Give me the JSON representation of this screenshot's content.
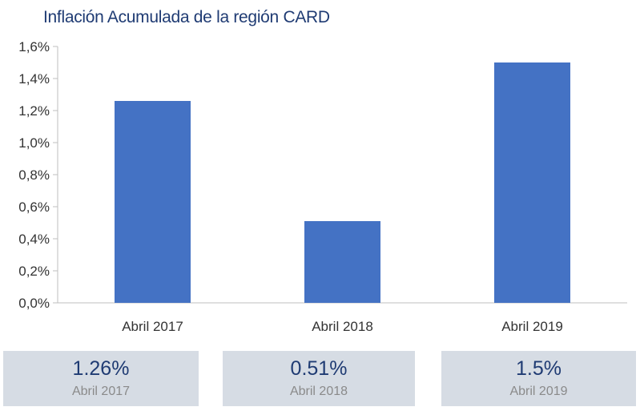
{
  "chart_data": {
    "type": "bar",
    "title": "Inflación Acumulada de la región CARD",
    "xlabel": "",
    "ylabel": "",
    "categories": [
      "Abril 2017",
      "Abril 2018",
      "Abril 2019"
    ],
    "values": [
      1.26,
      0.51,
      1.5
    ],
    "ylim": [
      0,
      1.6
    ],
    "yticks": [
      0,
      0.2,
      0.4,
      0.6,
      0.8,
      1.0,
      1.2,
      1.4,
      1.6
    ],
    "ytick_labels": [
      "0,0%",
      "0,2%",
      "0,4%",
      "0,6%",
      "0,8%",
      "1,0%",
      "1,2%",
      "1,4%",
      "1,6%"
    ],
    "grid": false,
    "bar_color": "#4472c4"
  },
  "summary": [
    {
      "value": "1.26%",
      "period": "Abril 2017"
    },
    {
      "value": "0.51%",
      "period": "Abril 2018"
    },
    {
      "value": "1.5%",
      "period": "Abril 2019"
    }
  ]
}
